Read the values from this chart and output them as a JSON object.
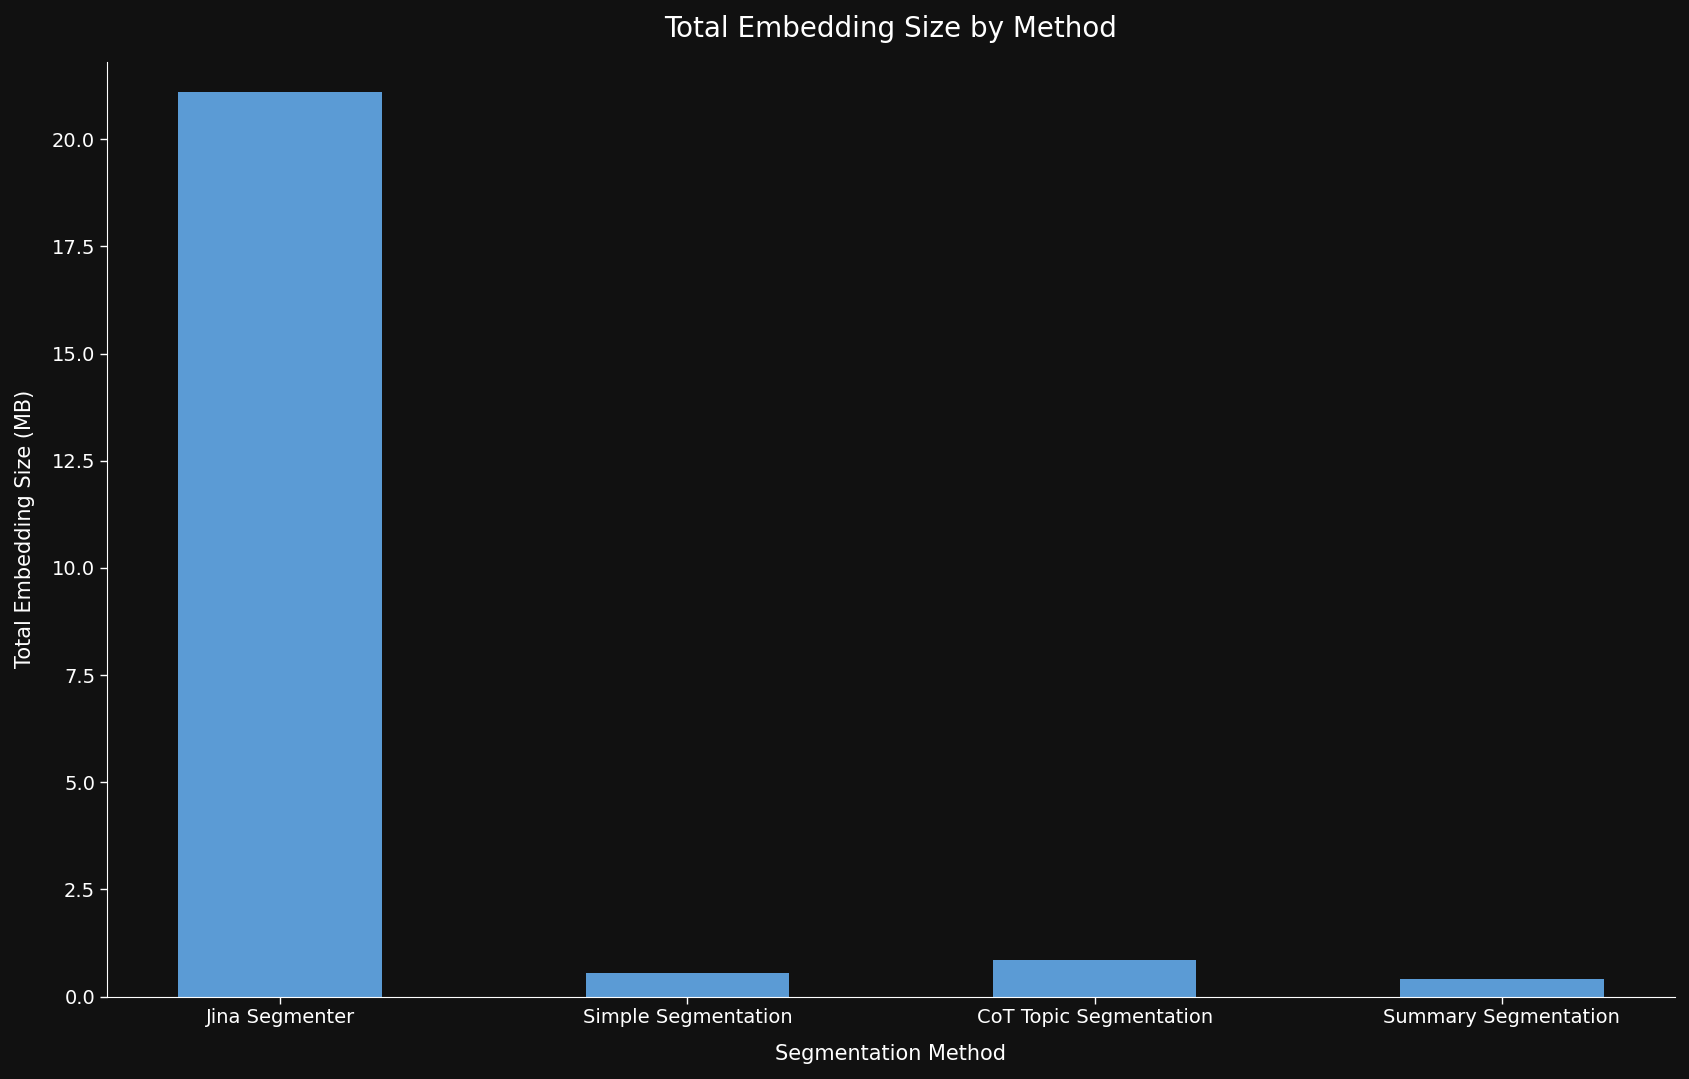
{
  "title": "Total Embedding Size by Method",
  "xlabel": "Segmentation Method",
  "ylabel": "Total Embedding Size (MB)",
  "categories": [
    "Jina Segmenter",
    "Simple Segmentation",
    "CoT Topic Segmentation",
    "Summary Segmentation"
  ],
  "values": [
    21.1,
    0.55,
    0.85,
    0.42
  ],
  "bar_color": "#5b9bd5",
  "background_color": "#111111",
  "text_color": "#ffffff",
  "title_fontsize": 20,
  "label_fontsize": 15,
  "tick_fontsize": 14,
  "ylim": [
    0,
    21.8
  ],
  "yticks": [
    0.0,
    2.5,
    5.0,
    7.5,
    10.0,
    12.5,
    15.0,
    17.5,
    20.0
  ],
  "bar_width": 0.5
}
